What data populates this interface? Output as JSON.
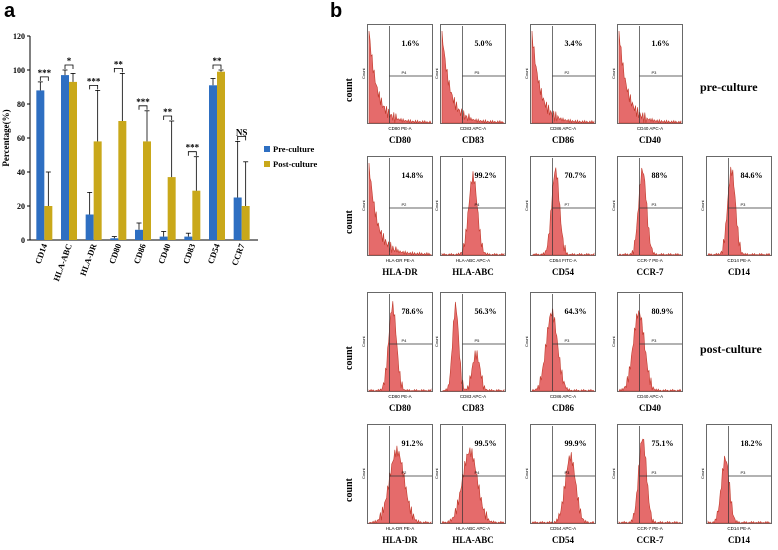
{
  "panel_a": {
    "letter": "a",
    "chart_data": {
      "type": "bar",
      "title": "",
      "xlabel": "",
      "ylabel": "Percentage(%)",
      "ylim": [
        0,
        120
      ],
      "yticks": [
        "0",
        "20",
        "40",
        "60",
        "80",
        "100",
        "120"
      ],
      "categories": [
        "CD14",
        "HLA-ABC",
        "HLA-DR",
        "CD80",
        "CD86",
        "CD40",
        "CD83",
        "CD54",
        "CCR7"
      ],
      "series": [
        {
          "name": "Pre-culture",
          "color": "#2e6fc2",
          "values": [
            88,
            97,
            15,
            1,
            6,
            2,
            2,
            91,
            25
          ],
          "errors": [
            5,
            3,
            13,
            1,
            4,
            3,
            2,
            4,
            33
          ]
        },
        {
          "name": "Post-culture",
          "color": "#c9a81a",
          "values": [
            20,
            93,
            58,
            70,
            58,
            37,
            29,
            99,
            20
          ],
          "errors": [
            20,
            5,
            30,
            28,
            18,
            33,
            20,
            1,
            26
          ]
        }
      ],
      "significance": [
        "***",
        "*",
        "***",
        "**",
        "***",
        "**",
        "***",
        "**",
        "NS"
      ],
      "legend_position": "right"
    }
  },
  "panel_b": {
    "letter": "b",
    "pre_culture_label": "pre-culture",
    "post_culture_label": "post-culture",
    "axis_count": "count",
    "axis_small_count": "Count",
    "rows": [
      {
        "items": [
          {
            "name": "CD80",
            "pct": "1.6%",
            "gate": "P4",
            "xlabel": "CD80 PE-A",
            "shape": "decay"
          },
          {
            "name": "CD83",
            "pct": "5.0%",
            "gate": "P5",
            "xlabel": "CD83 APC-A",
            "shape": "decay"
          },
          {
            "name": "CD86",
            "pct": "3.4%",
            "gate": "P2",
            "xlabel": "CD86 APC-A",
            "shape": "decay"
          },
          {
            "name": "CD40",
            "pct": "1.6%",
            "gate": "P3",
            "xlabel": "CD40 APC-A",
            "shape": "decay"
          }
        ]
      },
      {
        "items": [
          {
            "name": "HLA-DR",
            "pct": "14.8%",
            "gate": "P2",
            "xlabel": "HLA-DR PE-A",
            "shape": "decay"
          },
          {
            "name": "HLA-ABC",
            "pct": "99.2%",
            "gate": "P4",
            "xlabel": "HLA-ABC APC-A",
            "shape": "peakHigh"
          },
          {
            "name": "CD54",
            "pct": "70.7%",
            "gate": "P7",
            "xlabel": "CD54 FITC-A",
            "shape": "peakMid"
          },
          {
            "name": "CCR-7",
            "pct": "88%",
            "gate": "P3",
            "xlabel": "CCR-7 PE-A",
            "shape": "peakMid"
          },
          {
            "name": "CD14",
            "pct": "84.6%",
            "gate": "P3",
            "xlabel": "CD14 PE-A",
            "shape": "peakMid"
          }
        ]
      },
      {
        "items": [
          {
            "name": "CD80",
            "pct": "78.6%",
            "gate": "P4",
            "xlabel": "CD80 PE-A",
            "shape": "peakMid"
          },
          {
            "name": "CD83",
            "pct": "56.3%",
            "gate": "P5",
            "xlabel": "CD83 APC-A",
            "shape": "bimodal"
          },
          {
            "name": "CD86",
            "pct": "64.3%",
            "gate": "P3",
            "xlabel": "CD86 APC-A",
            "shape": "peakLow"
          },
          {
            "name": "CD40",
            "pct": "80.9%",
            "gate": "P3",
            "xlabel": "CD40 APC-A",
            "shape": "peakLow"
          }
        ]
      },
      {
        "items": [
          {
            "name": "HLA-DR",
            "pct": "91.2%",
            "gate": "P2",
            "xlabel": "HLA-DR PE-A",
            "shape": "peakWide"
          },
          {
            "name": "HLA-ABC",
            "pct": "99.5%",
            "gate": "P4",
            "xlabel": "HLA-ABC APC-A",
            "shape": "peakWide"
          },
          {
            "name": "CD54",
            "pct": "99.9%",
            "gate": "P3",
            "xlabel": "CD54 APC-A",
            "shape": "peakRight"
          },
          {
            "name": "CCR-7",
            "pct": "75.1%",
            "gate": "P3",
            "xlabel": "CCR-7 PE-A",
            "shape": "peakMid"
          },
          {
            "name": "CD14",
            "pct": "18.2%",
            "gate": "P3",
            "xlabel": "CD14 PE-A",
            "shape": "peakSmall"
          }
        ]
      }
    ]
  }
}
